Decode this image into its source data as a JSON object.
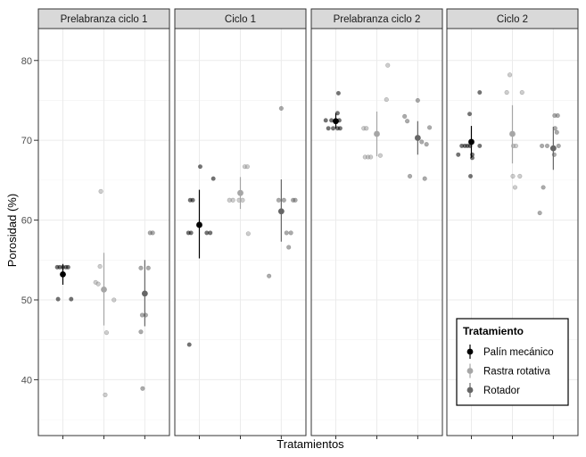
{
  "chart_data": {
    "type": "scatter",
    "xlabel": "Tratamientos",
    "ylabel": "Porosidad (%)",
    "ylim": [
      33,
      84
    ],
    "yticks": [
      40,
      50,
      60,
      70,
      80
    ],
    "grid": true,
    "legend": {
      "title": "Tratamiento",
      "position": "bottom-right-inside-last-panel",
      "entries": [
        "Palín mecánico",
        "Rastra rotativa",
        "Rotador"
      ]
    },
    "series_colors": {
      "Palín mecánico": "#000000",
      "Rastra rotativa": "#a6a6a6",
      "Rotador": "#666666"
    },
    "panels": [
      {
        "title": "Prelabranza ciclo 1",
        "groups": [
          {
            "treatment": "Palín mecánico",
            "mean": 53.2,
            "low": 51.9,
            "high": 54.5,
            "points": [
              {
                "j": -0.13,
                "y": 54.1
              },
              {
                "j": -0.07,
                "y": 54.1
              },
              {
                "j": 0.0,
                "y": 54.1
              },
              {
                "j": 0.07,
                "y": 54.1
              },
              {
                "j": 0.12,
                "y": 54.1
              },
              {
                "j": -0.11,
                "y": 50.1
              },
              {
                "j": 0.19,
                "y": 50.1
              }
            ]
          },
          {
            "treatment": "Rastra rotativa",
            "mean": 51.3,
            "low": 46.8,
            "high": 55.9,
            "points": [
              {
                "j": -0.19,
                "y": 52.2
              },
              {
                "j": -0.13,
                "y": 52.0
              },
              {
                "j": -0.07,
                "y": 63.6
              },
              {
                "j": 0.06,
                "y": 45.9
              },
              {
                "j": 0.23,
                "y": 50.0
              },
              {
                "j": 0.03,
                "y": 38.1
              },
              {
                "j": -0.09,
                "y": 54.2
              }
            ]
          },
          {
            "treatment": "Rotador",
            "mean": 50.8,
            "low": 46.7,
            "high": 55.0,
            "points": [
              {
                "j": -0.09,
                "y": 54.0
              },
              {
                "j": -0.06,
                "y": 48.1
              },
              {
                "j": 0.02,
                "y": 48.1
              },
              {
                "j": -0.09,
                "y": 46.0
              },
              {
                "j": 0.12,
                "y": 58.4
              },
              {
                "j": 0.18,
                "y": 58.4
              },
              {
                "j": -0.05,
                "y": 38.9
              },
              {
                "j": 0.08,
                "y": 54.0
              }
            ]
          }
        ]
      },
      {
        "title": "Ciclo 1",
        "groups": [
          {
            "treatment": "Palín mecánico",
            "mean": 59.4,
            "low": 55.2,
            "high": 63.8,
            "points": [
              {
                "j": -0.25,
                "y": 58.4
              },
              {
                "j": -0.19,
                "y": 58.4
              },
              {
                "j": -0.21,
                "y": 62.5
              },
              {
                "j": -0.15,
                "y": 62.5
              },
              {
                "j": 0.02,
                "y": 66.7
              },
              {
                "j": 0.17,
                "y": 58.4
              },
              {
                "j": 0.25,
                "y": 58.4
              },
              {
                "j": 0.32,
                "y": 65.2
              },
              {
                "j": -0.23,
                "y": 44.4
              }
            ]
          },
          {
            "treatment": "Rastra rotativa",
            "mean": 63.4,
            "low": 61.4,
            "high": 65.4,
            "points": [
              {
                "j": -0.25,
                "y": 62.5
              },
              {
                "j": -0.17,
                "y": 62.5
              },
              {
                "j": -0.03,
                "y": 62.5
              },
              {
                "j": 0.05,
                "y": 62.5
              },
              {
                "j": 0.1,
                "y": 66.7
              },
              {
                "j": 0.16,
                "y": 66.7
              },
              {
                "j": 0.18,
                "y": 58.3
              }
            ]
          },
          {
            "treatment": "Rotador",
            "mean": 61.1,
            "low": 57.3,
            "high": 65.1,
            "points": [
              {
                "j": -0.28,
                "y": 53.0
              },
              {
                "j": -0.06,
                "y": 62.5
              },
              {
                "j": 0.0,
                "y": 74.0
              },
              {
                "j": 0.06,
                "y": 62.5
              },
              {
                "j": 0.12,
                "y": 58.4
              },
              {
                "j": 0.17,
                "y": 56.6
              },
              {
                "j": 0.22,
                "y": 58.4
              },
              {
                "j": 0.27,
                "y": 62.5
              },
              {
                "j": 0.32,
                "y": 62.5
              }
            ]
          }
        ]
      },
      {
        "title": "Prelabranza ciclo 2",
        "groups": [
          {
            "treatment": "Palín mecánico",
            "mean": 72.4,
            "low": 71.5,
            "high": 73.4,
            "points": [
              {
                "j": -0.23,
                "y": 72.5
              },
              {
                "j": -0.17,
                "y": 71.5
              },
              {
                "j": -0.1,
                "y": 72.5
              },
              {
                "j": -0.06,
                "y": 71.5
              },
              {
                "j": 0.04,
                "y": 71.5
              },
              {
                "j": 0.1,
                "y": 71.5
              },
              {
                "j": 0.04,
                "y": 73.4
              },
              {
                "j": 0.08,
                "y": 72.5
              },
              {
                "j": 0.06,
                "y": 75.9
              }
            ]
          },
          {
            "treatment": "Rastra rotativa",
            "mean": 70.8,
            "low": 68.0,
            "high": 73.6,
            "points": [
              {
                "j": -0.3,
                "y": 71.5
              },
              {
                "j": -0.24,
                "y": 71.5
              },
              {
                "j": -0.27,
                "y": 67.9
              },
              {
                "j": -0.2,
                "y": 67.9
              },
              {
                "j": -0.14,
                "y": 67.9
              },
              {
                "j": 0.08,
                "y": 68.1
              },
              {
                "j": 0.25,
                "y": 79.4
              },
              {
                "j": 0.22,
                "y": 75.1
              }
            ]
          },
          {
            "treatment": "Rotador",
            "mean": 70.3,
            "low": 68.2,
            "high": 72.4,
            "points": [
              {
                "j": -0.3,
                "y": 73.0
              },
              {
                "j": -0.24,
                "y": 72.4
              },
              {
                "j": -0.18,
                "y": 65.5
              },
              {
                "j": 0.0,
                "y": 75.0
              },
              {
                "j": 0.09,
                "y": 69.8
              },
              {
                "j": 0.16,
                "y": 65.2
              },
              {
                "j": 0.2,
                "y": 69.5
              },
              {
                "j": 0.27,
                "y": 71.6
              }
            ]
          }
        ]
      },
      {
        "title": "Ciclo 2",
        "groups": [
          {
            "treatment": "Palín mecánico",
            "mean": 69.8,
            "low": 67.8,
            "high": 71.8,
            "points": [
              {
                "j": -0.3,
                "y": 68.2
              },
              {
                "j": -0.22,
                "y": 69.3
              },
              {
                "j": -0.15,
                "y": 69.3
              },
              {
                "j": -0.09,
                "y": 69.3
              },
              {
                "j": -0.03,
                "y": 69.3
              },
              {
                "j": 0.02,
                "y": 68.2
              },
              {
                "j": -0.02,
                "y": 65.5
              },
              {
                "j": 0.02,
                "y": 67.8
              },
              {
                "j": 0.19,
                "y": 69.3
              },
              {
                "j": 0.19,
                "y": 76.0
              },
              {
                "j": -0.04,
                "y": 73.3
              }
            ]
          },
          {
            "treatment": "Rastra rotativa",
            "mean": 70.8,
            "low": 67.1,
            "high": 74.4,
            "points": [
              {
                "j": -0.13,
                "y": 76.0
              },
              {
                "j": -0.06,
                "y": 78.2
              },
              {
                "j": 0.01,
                "y": 65.5
              },
              {
                "j": 0.06,
                "y": 64.1
              },
              {
                "j": 0.02,
                "y": 69.3
              },
              {
                "j": 0.08,
                "y": 69.3
              },
              {
                "j": 0.17,
                "y": 65.5
              },
              {
                "j": 0.22,
                "y": 76.0
              }
            ]
          },
          {
            "treatment": "Rotador",
            "mean": 69.0,
            "low": 66.3,
            "high": 71.7,
            "points": [
              {
                "j": -0.26,
                "y": 69.3
              },
              {
                "j": -0.23,
                "y": 64.1
              },
              {
                "j": -0.31,
                "y": 60.9
              },
              {
                "j": -0.14,
                "y": 69.3
              },
              {
                "j": 0.03,
                "y": 73.1
              },
              {
                "j": 0.1,
                "y": 73.1
              },
              {
                "j": 0.04,
                "y": 71.5
              },
              {
                "j": 0.08,
                "y": 71.0
              },
              {
                "j": 0.02,
                "y": 68.2
              },
              {
                "j": 0.12,
                "y": 69.3
              }
            ]
          }
        ]
      }
    ]
  }
}
